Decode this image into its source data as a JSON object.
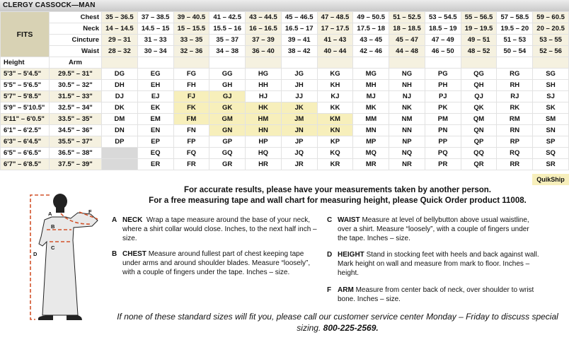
{
  "title": "CLERGY CASSOCK—MAN",
  "table": {
    "fits_label": "FITS",
    "measure_labels": [
      "Chest",
      "Neck",
      "Cincture",
      "Waist"
    ],
    "height_label": "Height",
    "arm_label": "Arm",
    "measures": [
      [
        "35 – 36.5",
        "37 – 38.5",
        "39 – 40.5",
        "41 – 42.5",
        "43 – 44.5",
        "45 – 46.5",
        "47 – 48.5",
        "49 – 50.5",
        "51 – 52.5",
        "53 – 54.5",
        "55 – 56.5",
        "57 – 58.5",
        "59 – 60.5"
      ],
      [
        "14 – 14.5",
        "14.5 – 15",
        "15 – 15.5",
        "15.5 – 16",
        "16 – 16.5",
        "16.5 – 17",
        "17 – 17.5",
        "17.5 – 18",
        "18 – 18.5",
        "18.5 – 19",
        "19 – 19.5",
        "19.5 – 20",
        "20 – 20.5"
      ],
      [
        "29 – 31",
        "31 – 33",
        "33 – 35",
        "35 – 37",
        "37 – 39",
        "39 – 41",
        "41 – 43",
        "43 – 45",
        "45 – 47",
        "47 – 49",
        "49 – 51",
        "51 – 53",
        "53 – 55"
      ],
      [
        "28 – 32",
        "30 – 34",
        "32 – 36",
        "34 – 38",
        "36 – 40",
        "38 – 42",
        "40 – 44",
        "42 – 46",
        "44 – 48",
        "46 – 50",
        "48 – 52",
        "50 – 54",
        "52 – 56"
      ]
    ],
    "rows": [
      {
        "height": "5'3\" – 5'4.5\"",
        "arm": "29.5\" – 31\"",
        "codes": [
          "DG",
          "EG",
          "FG",
          "GG",
          "HG",
          "JG",
          "KG",
          "MG",
          "NG",
          "PG",
          "QG",
          "RG",
          "SG"
        ]
      },
      {
        "height": "5'5\" – 5'6.5\"",
        "arm": "30.5\" – 32\"",
        "codes": [
          "DH",
          "EH",
          "FH",
          "GH",
          "HH",
          "JH",
          "KH",
          "MH",
          "NH",
          "PH",
          "QH",
          "RH",
          "SH"
        ]
      },
      {
        "height": "5'7\" – 5'8.5\"",
        "arm": "31.5\" – 33\"",
        "codes": [
          "DJ",
          "EJ",
          "FJ",
          "GJ",
          "HJ",
          "JJ",
          "KJ",
          "MJ",
          "NJ",
          "PJ",
          "QJ",
          "RJ",
          "SJ"
        ]
      },
      {
        "height": "5'9\" – 5'10.5\"",
        "arm": "32.5\" – 34\"",
        "codes": [
          "DK",
          "EK",
          "FK",
          "GK",
          "HK",
          "JK",
          "KK",
          "MK",
          "NK",
          "PK",
          "QK",
          "RK",
          "SK"
        ]
      },
      {
        "height": "5'11\" – 6'0.5\"",
        "arm": "33.5\" – 35\"",
        "codes": [
          "DM",
          "EM",
          "FM",
          "GM",
          "HM",
          "JM",
          "KM",
          "MM",
          "NM",
          "PM",
          "QM",
          "RM",
          "SM"
        ]
      },
      {
        "height": "6'1\" – 6'2.5\"",
        "arm": "34.5\" – 36\"",
        "codes": [
          "DN",
          "EN",
          "FN",
          "GN",
          "HN",
          "JN",
          "KN",
          "MN",
          "NN",
          "PN",
          "QN",
          "RN",
          "SN"
        ]
      },
      {
        "height": "6'3\" – 6'4.5\"",
        "arm": "35.5\" – 37\"",
        "codes": [
          "DP",
          "EP",
          "FP",
          "GP",
          "HP",
          "JP",
          "KP",
          "MP",
          "NP",
          "PP",
          "QP",
          "RP",
          "SP"
        ]
      },
      {
        "height": "6'5\" – 6'6.5\"",
        "arm": "36.5\" – 38\"",
        "codes": [
          null,
          "EQ",
          "FQ",
          "GQ",
          "HQ",
          "JQ",
          "KQ",
          "MQ",
          "NQ",
          "PQ",
          "QQ",
          "RQ",
          "SQ"
        ]
      },
      {
        "height": "6'7\" – 6'8.5\"",
        "arm": "37.5\" – 39\"",
        "codes": [
          null,
          "ER",
          "FR",
          "GR",
          "HR",
          "JR",
          "KR",
          "MR",
          "NR",
          "PR",
          "QR",
          "RR",
          "SR"
        ]
      }
    ],
    "quikship_codes": [
      "FJ",
      "GJ",
      "FK",
      "GK",
      "HK",
      "JK",
      "FM",
      "GM",
      "HM",
      "JM",
      "KM",
      "GN",
      "HN",
      "JN",
      "KN"
    ]
  },
  "legend": {
    "quikship_label": "QuikShip"
  },
  "colors": {
    "fits_bg": "#d8d2b4",
    "alt_bg": "#f5f1e0",
    "quikship": "#f7efbb",
    "unavailable": "#d9d9d9",
    "measure_line": "#d2532b"
  },
  "figure": {
    "labels": [
      "A",
      "B",
      "C",
      "D",
      "F"
    ]
  },
  "heading": {
    "line1": "For accurate results, please have your measurements taken by another person.",
    "line2": "For a free measuring tape and wall chart for measuring height, please Quick Order product 11008."
  },
  "instructions": [
    {
      "letter": "A",
      "title": "NECK",
      "text": "Wrap a tape measure around the base of your neck, where a shirt collar would close. Inches, to the next half inch – size."
    },
    {
      "letter": "B",
      "title": "CHEST",
      "text": "Measure around fullest part of chest keeping tape under arms and around shoulder blades. Measure “loosely”, with a couple of fingers under the tape. Inches – size."
    },
    {
      "letter": "C",
      "title": "WAIST",
      "text": "Measure at level of bellybutton above usual waistline, over a shirt. Measure “loosely”, with a couple of fingers under the tape. Inches – size."
    },
    {
      "letter": "D",
      "title": "HEIGHT",
      "text": "Stand in stocking feet with heels and back against wall. Mark height on wall and measure from mark to floor. Inches – height."
    },
    {
      "letter": "F",
      "title": "ARM",
      "text": "Measure from center back of neck, over shoulder to wrist bone. Inches – size."
    }
  ],
  "footer": {
    "text": "If none of these standard sizes will fit you, please call our customer service center Monday – Friday to discuss special sizing.",
    "phone": "800-225-2569."
  }
}
